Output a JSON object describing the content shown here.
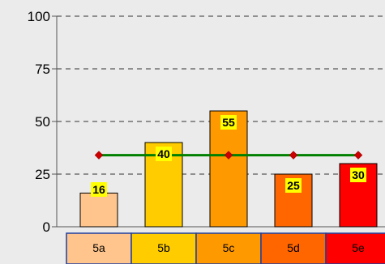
{
  "chart_data": {
    "type": "bar",
    "categories": [
      "5a",
      "5b",
      "5c",
      "5d",
      "5e"
    ],
    "values": [
      16,
      40,
      55,
      25,
      30
    ],
    "value_labels": [
      "16",
      "40",
      "55",
      "25",
      "30"
    ],
    "bar_colors": [
      "#ffc58c",
      "#ffcc00",
      "#ff9900",
      "#ff6600",
      "#ff0000"
    ],
    "category_colors": [
      "#ffc58c",
      "#ffcc00",
      "#ff9900",
      "#ff6600",
      "#ff0000"
    ],
    "reference_line": {
      "value": 34,
      "color": "#008000",
      "marker_color": "#cc0000"
    },
    "ylim": [
      0,
      100
    ],
    "y_ticks": [
      0,
      25,
      50,
      75,
      100
    ],
    "y_tick_labels": [
      "0",
      "25",
      "50",
      "75",
      "100"
    ],
    "grid": true,
    "title": "",
    "xlabel": "",
    "ylabel": ""
  }
}
